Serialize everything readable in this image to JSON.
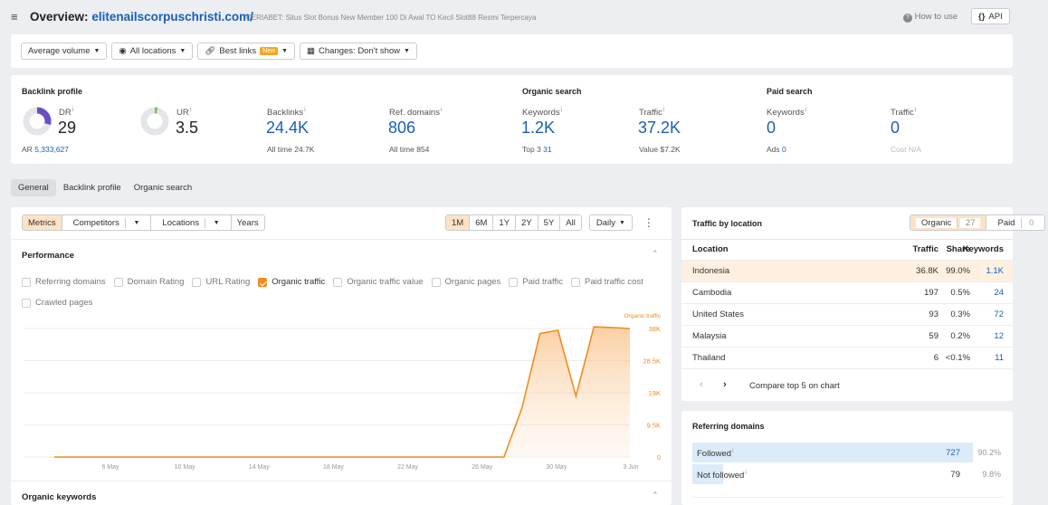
{
  "header": {
    "menu_icon": "hamburger-icon",
    "title_prefix": "Overview:",
    "domain": "elitenailscorpuschristi.com/",
    "page_desc": "CERIABET: Situs Slot Bonus New Member 100 Di Awal TO Kecil Slot88 Resmi Terpercaya",
    "how_to_use": "How to use",
    "api": "API",
    "api_icon": "{}"
  },
  "filters": {
    "volume": "Average volume",
    "locations": "All locations",
    "best_links": "Best links",
    "new_badge": "New",
    "changes": "Changes: Don't show"
  },
  "backlink_profile": {
    "title": "Backlink profile",
    "dr_label": "DR",
    "dr_value": "29",
    "ar_label": "AR",
    "ar_value": "5,333,627",
    "ur_label": "UR",
    "ur_value": "3.5",
    "backlinks_label": "Backlinks",
    "backlinks_value": "24.4K",
    "backlinks_sub": "All time 24.7K",
    "refdomains_label": "Ref. domains",
    "refdomains_value": "806",
    "refdomains_sub": "All time 854"
  },
  "organic_search": {
    "title": "Organic search",
    "keywords_label": "Keywords",
    "keywords_value": "1.2K",
    "top3_label": "Top 3",
    "top3_value": "31",
    "traffic_label": "Traffic",
    "traffic_value": "37.2K",
    "traffic_sub": "Value $7.2K"
  },
  "paid_search": {
    "title": "Paid search",
    "keywords_label": "Keywords",
    "keywords_value": "0",
    "ads_label": "Ads",
    "ads_value": "0",
    "traffic_label": "Traffic",
    "traffic_value": "0",
    "traffic_sub": "Cost N/A"
  },
  "tabs": [
    "General",
    "Backlink profile",
    "Organic search"
  ],
  "chart_toolbar": {
    "metrics": "Metrics",
    "competitors": "Competitors",
    "locations": "Locations",
    "years": "Years",
    "ranges": [
      "1M",
      "6M",
      "1Y",
      "2Y",
      "5Y",
      "All"
    ],
    "interval": "Daily"
  },
  "performance": {
    "title": "Performance",
    "checkboxes": [
      {
        "label": "Referring domains",
        "checked": false
      },
      {
        "label": "Domain Rating",
        "checked": false
      },
      {
        "label": "URL Rating",
        "checked": false
      },
      {
        "label": "Organic traffic",
        "checked": true
      },
      {
        "label": "Organic traffic value",
        "checked": false
      },
      {
        "label": "Organic pages",
        "checked": false
      },
      {
        "label": "Paid traffic",
        "checked": false
      },
      {
        "label": "Paid traffic cost",
        "checked": false
      },
      {
        "label": "Crawled pages",
        "checked": false
      }
    ]
  },
  "organic_keywords_title": "Organic keywords",
  "chart_data": {
    "type": "area",
    "series": [
      {
        "name": "Organic traffic",
        "color": "#f28c1e",
        "values": [
          0,
          0,
          0,
          0,
          0,
          0,
          0,
          0,
          0,
          0,
          0,
          0,
          0,
          0,
          0,
          0,
          0,
          0,
          0,
          0,
          0,
          0,
          0,
          0,
          0,
          0,
          14500,
          36500,
          37500,
          18000,
          38500,
          38300,
          38000
        ]
      }
    ],
    "x": [
      "4 May",
      "5 May",
      "6 May",
      "7 May",
      "8 May",
      "9 May",
      "10 May",
      "11 May",
      "12 May",
      "13 May",
      "14 May",
      "15 May",
      "16 May",
      "17 May",
      "18 May",
      "19 May",
      "20 May",
      "21 May",
      "22 May",
      "23 May",
      "24 May",
      "25 May",
      "26 May",
      "27 May",
      "28 May",
      "29 May",
      "30 May",
      "31 May",
      "1 Jun",
      "2 Jun",
      "3 Jun",
      "3 Jun",
      "3 Jun"
    ],
    "x_tick_labels": [
      "6 May",
      "10 May",
      "14 May",
      "18 May",
      "22 May",
      "26 May",
      "30 May",
      "3 Jun"
    ],
    "y_ticks": [
      "38K",
      "28.5K",
      "19K",
      "9.5K",
      "0"
    ],
    "ylim": [
      0,
      38000
    ],
    "grid": true,
    "legend": "top-right"
  },
  "traffic_by_location": {
    "title": "Traffic by location",
    "organic_label": "Organic",
    "organic_count": "27",
    "paid_label": "Paid",
    "paid_count": "0",
    "headers": {
      "location": "Location",
      "traffic": "Traffic",
      "share": "Share",
      "keywords": "Keywords"
    },
    "rows": [
      {
        "location": "Indonesia",
        "traffic": "36.8K",
        "share": "99.0%",
        "keywords": "1.1K"
      },
      {
        "location": "Cambodia",
        "traffic": "197",
        "share": "0.5%",
        "keywords": "24"
      },
      {
        "location": "United States",
        "traffic": "93",
        "share": "0.3%",
        "keywords": "72"
      },
      {
        "location": "Malaysia",
        "traffic": "59",
        "share": "0.2%",
        "keywords": "12"
      },
      {
        "location": "Thailand",
        "traffic": "6",
        "share": "<0.1%",
        "keywords": "11"
      }
    ],
    "compare": "Compare top 5 on chart"
  },
  "referring_domains": {
    "title": "Referring domains",
    "followed_label": "Followed",
    "followed_value": "727",
    "followed_pct": "90.2%",
    "followed_fraction": 0.902,
    "notfollowed_label": "Not followed",
    "notfollowed_value": "79",
    "notfollowed_pct": "9.8%",
    "notfollowed_fraction": 0.098
  }
}
